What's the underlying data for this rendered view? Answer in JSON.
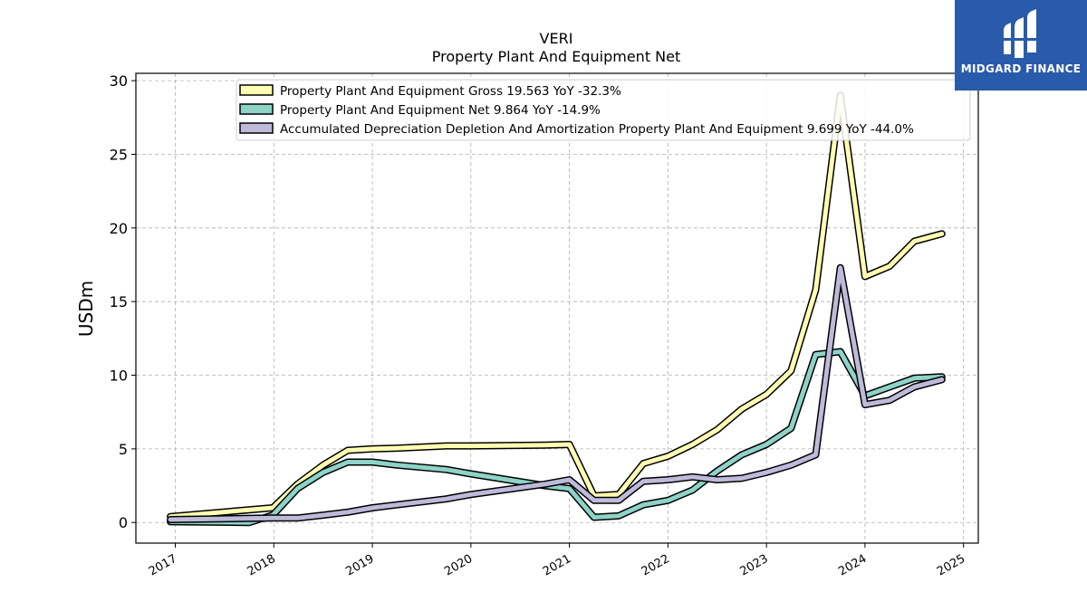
{
  "chart_data": {
    "type": "line",
    "title": "VERI",
    "subtitle": "Property Plant And Equipment Net",
    "xlabel": "",
    "ylabel": "USDm",
    "xlim": [
      2016.6,
      2025.15
    ],
    "ylim": [
      -1.4,
      30.5
    ],
    "x_ticks": [
      2017,
      2018,
      2019,
      2020,
      2021,
      2022,
      2023,
      2024,
      2025
    ],
    "x_tick_labels": [
      "2017",
      "2018",
      "2019",
      "2020",
      "2021",
      "2022",
      "2023",
      "2024",
      "2025"
    ],
    "y_ticks": [
      0,
      5,
      10,
      15,
      20,
      25,
      30
    ],
    "y_tick_labels": [
      "0",
      "5",
      "10",
      "15",
      "20",
      "25",
      "30"
    ],
    "grid": true,
    "legend_position": "top-center",
    "series": [
      {
        "name": "Property Plant And Equipment Gross",
        "legend_label": "Property Plant And Equipment Gross  19.563 YoY -32.3%",
        "color": "#ffffb3",
        "points": [
          [
            2016.95,
            0.4
          ],
          [
            2017.99,
            1.0
          ],
          [
            2018.24,
            2.6
          ],
          [
            2018.5,
            3.9
          ],
          [
            2018.75,
            4.9
          ],
          [
            2019.0,
            5.0
          ],
          [
            2019.25,
            5.05
          ],
          [
            2019.75,
            5.2
          ],
          [
            2020.0,
            5.2
          ],
          [
            2020.75,
            5.25
          ],
          [
            2021.0,
            5.3
          ],
          [
            2021.25,
            1.8
          ],
          [
            2021.5,
            1.9
          ],
          [
            2021.75,
            4.0
          ],
          [
            2022.0,
            4.5
          ],
          [
            2022.25,
            5.3
          ],
          [
            2022.5,
            6.3
          ],
          [
            2022.75,
            7.7
          ],
          [
            2023.0,
            8.7
          ],
          [
            2023.25,
            10.3
          ],
          [
            2023.5,
            15.8
          ],
          [
            2023.75,
            29.0
          ],
          [
            2024.0,
            16.7
          ],
          [
            2024.25,
            17.4
          ],
          [
            2024.5,
            19.1
          ],
          [
            2024.78,
            19.6
          ]
        ]
      },
      {
        "name": "Property Plant And Equipment Net",
        "legend_label": "Property Plant And Equipment Net  9.864 YoY -14.9%",
        "color": "#8dd3c7",
        "points": [
          [
            2016.95,
            0.05
          ],
          [
            2017.75,
            0.0
          ],
          [
            2017.99,
            0.5
          ],
          [
            2018.24,
            2.3
          ],
          [
            2018.5,
            3.4
          ],
          [
            2018.75,
            4.1
          ],
          [
            2019.0,
            4.1
          ],
          [
            2019.25,
            3.9
          ],
          [
            2019.75,
            3.6
          ],
          [
            2020.0,
            3.3
          ],
          [
            2020.75,
            2.5
          ],
          [
            2021.0,
            2.3
          ],
          [
            2021.25,
            0.35
          ],
          [
            2021.5,
            0.45
          ],
          [
            2021.75,
            1.2
          ],
          [
            2022.0,
            1.5
          ],
          [
            2022.25,
            2.2
          ],
          [
            2022.5,
            3.5
          ],
          [
            2022.75,
            4.6
          ],
          [
            2023.0,
            5.3
          ],
          [
            2023.25,
            6.4
          ],
          [
            2023.5,
            11.4
          ],
          [
            2023.75,
            11.6
          ],
          [
            2024.0,
            8.6
          ],
          [
            2024.25,
            9.2
          ],
          [
            2024.5,
            9.8
          ],
          [
            2024.78,
            9.9
          ]
        ]
      },
      {
        "name": "Accumulated Depreciation Depletion And Amortization Property Plant And Equipment",
        "legend_label": "Accumulated Depreciation Depletion And Amortization Property Plant And Equipment  9.699 YoY -44.0%",
        "color": "#bebada",
        "points": [
          [
            2016.95,
            0.2
          ],
          [
            2017.99,
            0.3
          ],
          [
            2018.24,
            0.3
          ],
          [
            2018.5,
            0.5
          ],
          [
            2018.75,
            0.7
          ],
          [
            2019.0,
            1.0
          ],
          [
            2019.25,
            1.2
          ],
          [
            2019.75,
            1.6
          ],
          [
            2020.0,
            1.9
          ],
          [
            2020.75,
            2.6
          ],
          [
            2021.0,
            2.9
          ],
          [
            2021.25,
            1.5
          ],
          [
            2021.5,
            1.5
          ],
          [
            2021.75,
            2.8
          ],
          [
            2022.0,
            2.9
          ],
          [
            2022.25,
            3.1
          ],
          [
            2022.5,
            2.9
          ],
          [
            2022.75,
            3.0
          ],
          [
            2023.0,
            3.4
          ],
          [
            2023.25,
            3.9
          ],
          [
            2023.5,
            4.6
          ],
          [
            2023.75,
            17.3
          ],
          [
            2024.0,
            8.0
          ],
          [
            2024.25,
            8.3
          ],
          [
            2024.5,
            9.2
          ],
          [
            2024.78,
            9.7
          ]
        ]
      }
    ]
  },
  "branding": {
    "name": "MIDGARD FINANCE",
    "background_color": "#2a5aaa"
  }
}
